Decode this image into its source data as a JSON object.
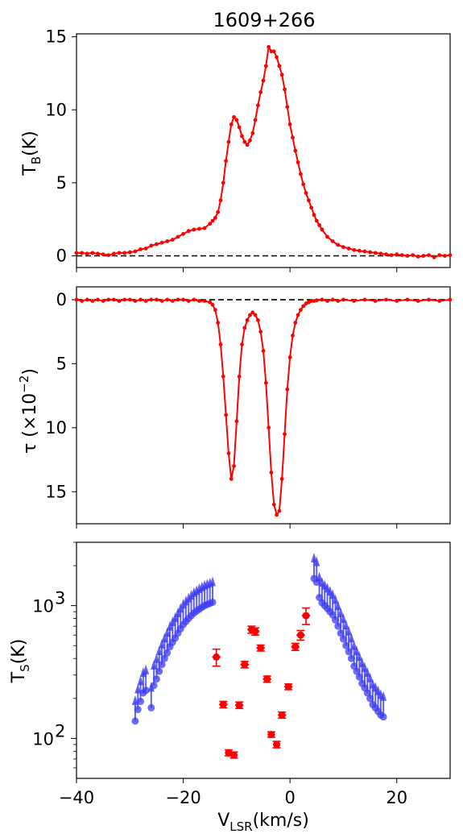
{
  "chart_data": [
    {
      "panel": "top",
      "type": "line",
      "title": "1609+266",
      "ylabel_main": "T",
      "ylabel_sub": "B",
      "ylabel_tail": "(K)",
      "xlim": [
        -40,
        30
      ],
      "ylim": [
        -0.8,
        15.2
      ],
      "yticks": [
        0,
        5,
        10,
        15
      ],
      "xticks": [
        -40,
        -20,
        0,
        20
      ],
      "baseline": 0,
      "color": "#ff0000",
      "x": [
        -40,
        -39,
        -38,
        -37,
        -36,
        -35,
        -34,
        -33,
        -32,
        -31,
        -30,
        -29,
        -28,
        -27,
        -26,
        -25,
        -24,
        -23,
        -22,
        -21,
        -20,
        -19,
        -18,
        -17,
        -16,
        -15,
        -14.5,
        -14,
        -13.5,
        -13,
        -12.5,
        -12,
        -11.5,
        -11,
        -10.5,
        -10,
        -9.5,
        -9,
        -8.5,
        -8,
        -7.5,
        -7,
        -6.5,
        -6,
        -5.5,
        -5,
        -4.5,
        -4,
        -3.5,
        -3,
        -2.5,
        -2,
        -1.5,
        -1,
        -0.5,
        0,
        0.5,
        1,
        1.5,
        2,
        2.5,
        3,
        3.5,
        4,
        4.5,
        5,
        5.5,
        6,
        7,
        8,
        9,
        10,
        11,
        12,
        13,
        14,
        15,
        16,
        17,
        18,
        19,
        20,
        21,
        22,
        23,
        24,
        25,
        26,
        27,
        28,
        29,
        30
      ],
      "y": [
        0.2,
        0.2,
        0.15,
        0.2,
        0.15,
        0.1,
        0.05,
        0.15,
        0.2,
        0.2,
        0.25,
        0.3,
        0.45,
        0.5,
        0.7,
        0.8,
        0.9,
        1.0,
        1.1,
        1.3,
        1.5,
        1.7,
        1.8,
        1.85,
        1.9,
        2.2,
        2.4,
        2.6,
        3.0,
        3.8,
        5.0,
        6.5,
        7.8,
        9.0,
        9.5,
        9.3,
        8.8,
        8.2,
        7.8,
        7.6,
        7.9,
        8.4,
        9.3,
        10.3,
        11.2,
        12.0,
        13.0,
        14.3,
        14.0,
        14.0,
        13.6,
        13.0,
        12.4,
        11.4,
        10.2,
        9.0,
        8.1,
        7.2,
        6.4,
        5.6,
        4.9,
        4.3,
        3.8,
        3.3,
        2.8,
        2.4,
        2.1,
        1.8,
        1.3,
        1.0,
        0.75,
        0.6,
        0.5,
        0.4,
        0.35,
        0.3,
        0.25,
        0.2,
        0.15,
        0.1,
        0.05,
        0.1,
        0.05,
        0.0,
        0.05,
        -0.05,
        0.0,
        0.05,
        -0.1,
        0.05,
        0.0,
        0.05
      ]
    },
    {
      "panel": "middle",
      "type": "line",
      "ylabel": "τ (×10",
      "ylabel_sup": "−2",
      "ylabel_tail": ")",
      "xlim": [
        -40,
        30
      ],
      "ylim": [
        17.5,
        -1
      ],
      "yticks": [
        0,
        5,
        10,
        15
      ],
      "baseline": 0,
      "color": "#ff0000",
      "x": [
        -40,
        -39,
        -38,
        -37,
        -36,
        -35,
        -34,
        -33,
        -32,
        -31,
        -30,
        -29,
        -28,
        -27,
        -26,
        -25,
        -24,
        -23,
        -22,
        -21,
        -20,
        -19,
        -18,
        -17,
        -16,
        -15,
        -14.5,
        -14,
        -13.5,
        -13,
        -12.5,
        -12,
        -11.5,
        -11,
        -10.5,
        -10,
        -9.5,
        -9,
        -8.5,
        -8,
        -7.5,
        -7,
        -6.5,
        -6,
        -5.5,
        -5,
        -4.5,
        -4,
        -3.5,
        -3,
        -2.5,
        -2,
        -1.5,
        -1,
        -0.5,
        0,
        0.5,
        1,
        1.5,
        2,
        2.5,
        3,
        3.5,
        4,
        4.5,
        5,
        6,
        7,
        8,
        9,
        10,
        12,
        14,
        16,
        18,
        20,
        22,
        24,
        26,
        28,
        30
      ],
      "y": [
        0,
        0.1,
        0,
        0.1,
        0,
        0.1,
        0,
        0,
        0.1,
        0,
        0,
        0.1,
        0,
        0.1,
        0,
        0,
        0.1,
        0,
        0.1,
        0,
        0,
        0.1,
        0,
        0.1,
        0.1,
        0.2,
        0.4,
        0.8,
        1.8,
        3.5,
        6.0,
        9.0,
        12.0,
        14.0,
        13.0,
        9.5,
        6.0,
        3.5,
        2.2,
        1.6,
        1.2,
        1.0,
        1.2,
        1.6,
        2.5,
        4.0,
        6.5,
        10.0,
        13.5,
        16.0,
        16.8,
        16.5,
        14.0,
        10.5,
        7.0,
        4.5,
        2.8,
        1.8,
        1.2,
        0.8,
        0.5,
        0.3,
        0.2,
        0.1,
        0.1,
        0.05,
        0,
        0.1,
        0,
        0.1,
        0,
        0.1,
        0,
        0.1,
        0,
        0.1,
        0,
        0.1,
        0,
        0.1,
        0
      ]
    },
    {
      "panel": "bottom",
      "type": "scatter",
      "yscale": "log",
      "ylabel_main": "T",
      "ylabel_sub": "S",
      "ylabel_tail": "(K)",
      "xlabel_main": "V",
      "xlabel_sub": "LSR",
      "xlabel_tail": "(km/s)",
      "xlim": [
        -40,
        30
      ],
      "ylim": [
        50,
        3000
      ],
      "ytick_labels": [
        {
          "value": 100,
          "base": "10",
          "exp": "2"
        },
        {
          "value": 1000,
          "base": "10",
          "exp": "3"
        }
      ],
      "xticks": [
        -40,
        -20,
        0,
        20
      ],
      "xtick_labels": [
        "−40",
        "−20",
        "0",
        "20"
      ],
      "lower_limits": {
        "color": "#3b3bf0",
        "x": [
          -29,
          -28.5,
          -28,
          -27.5,
          -27,
          -26,
          -25.5,
          -25,
          -24.5,
          -24,
          -23.5,
          -23,
          -22.5,
          -22,
          -21.5,
          -21,
          -20.5,
          -20,
          -19.5,
          -19,
          -18.5,
          -18,
          -17.5,
          -17,
          -16.5,
          -16,
          -15.5,
          -15,
          -14.5,
          4.5,
          5,
          5.5,
          6,
          6.5,
          7,
          7.5,
          8,
          8.5,
          9,
          9.5,
          10,
          10.5,
          11,
          11.5,
          12,
          12.5,
          13,
          13.5,
          14,
          14.5,
          15,
          15.5,
          16,
          16.5,
          17,
          17.5
        ],
        "y": [
          135,
          165,
          190,
          220,
          230,
          170,
          250,
          280,
          320,
          360,
          400,
          440,
          490,
          530,
          570,
          620,
          670,
          720,
          760,
          800,
          840,
          880,
          910,
          940,
          970,
          1000,
          1020,
          1040,
          1060,
          1600,
          1500,
          1150,
          1050,
          1000,
          950,
          900,
          850,
          780,
          700,
          620,
          560,
          500,
          450,
          400,
          350,
          320,
          290,
          260,
          240,
          220,
          200,
          180,
          170,
          160,
          150,
          145
        ]
      },
      "detections": {
        "color": "#ff0000",
        "points": [
          {
            "x": -13.8,
            "y": 410,
            "xerr": 0.8,
            "yerr": 60
          },
          {
            "x": -12.5,
            "y": 180,
            "xerr": 0.8,
            "yerr": 10
          },
          {
            "x": -11.5,
            "y": 78,
            "xerr": 0.7,
            "yerr": 4
          },
          {
            "x": -10.5,
            "y": 75,
            "xerr": 0.7,
            "yerr": 4
          },
          {
            "x": -9.5,
            "y": 178,
            "xerr": 0.8,
            "yerr": 10
          },
          {
            "x": -8.5,
            "y": 360,
            "xerr": 0.8,
            "yerr": 20
          },
          {
            "x": -7.2,
            "y": 660,
            "xerr": 0.8,
            "yerr": 40
          },
          {
            "x": -6.5,
            "y": 640,
            "xerr": 0.8,
            "yerr": 40
          },
          {
            "x": -5.5,
            "y": 480,
            "xerr": 0.8,
            "yerr": 25
          },
          {
            "x": -4.3,
            "y": 280,
            "xerr": 0.8,
            "yerr": 15
          },
          {
            "x": -3.5,
            "y": 107,
            "xerr": 0.7,
            "yerr": 5
          },
          {
            "x": -2.5,
            "y": 90,
            "xerr": 0.7,
            "yerr": 5
          },
          {
            "x": -1.5,
            "y": 150,
            "xerr": 0.8,
            "yerr": 8
          },
          {
            "x": -0.3,
            "y": 245,
            "xerr": 0.8,
            "yerr": 12
          },
          {
            "x": 1.0,
            "y": 490,
            "xerr": 0.8,
            "yerr": 30
          },
          {
            "x": 2.0,
            "y": 600,
            "xerr": 0.8,
            "yerr": 50
          },
          {
            "x": 3.0,
            "y": 840,
            "xerr": 0.8,
            "yerr": 120
          }
        ]
      }
    }
  ]
}
